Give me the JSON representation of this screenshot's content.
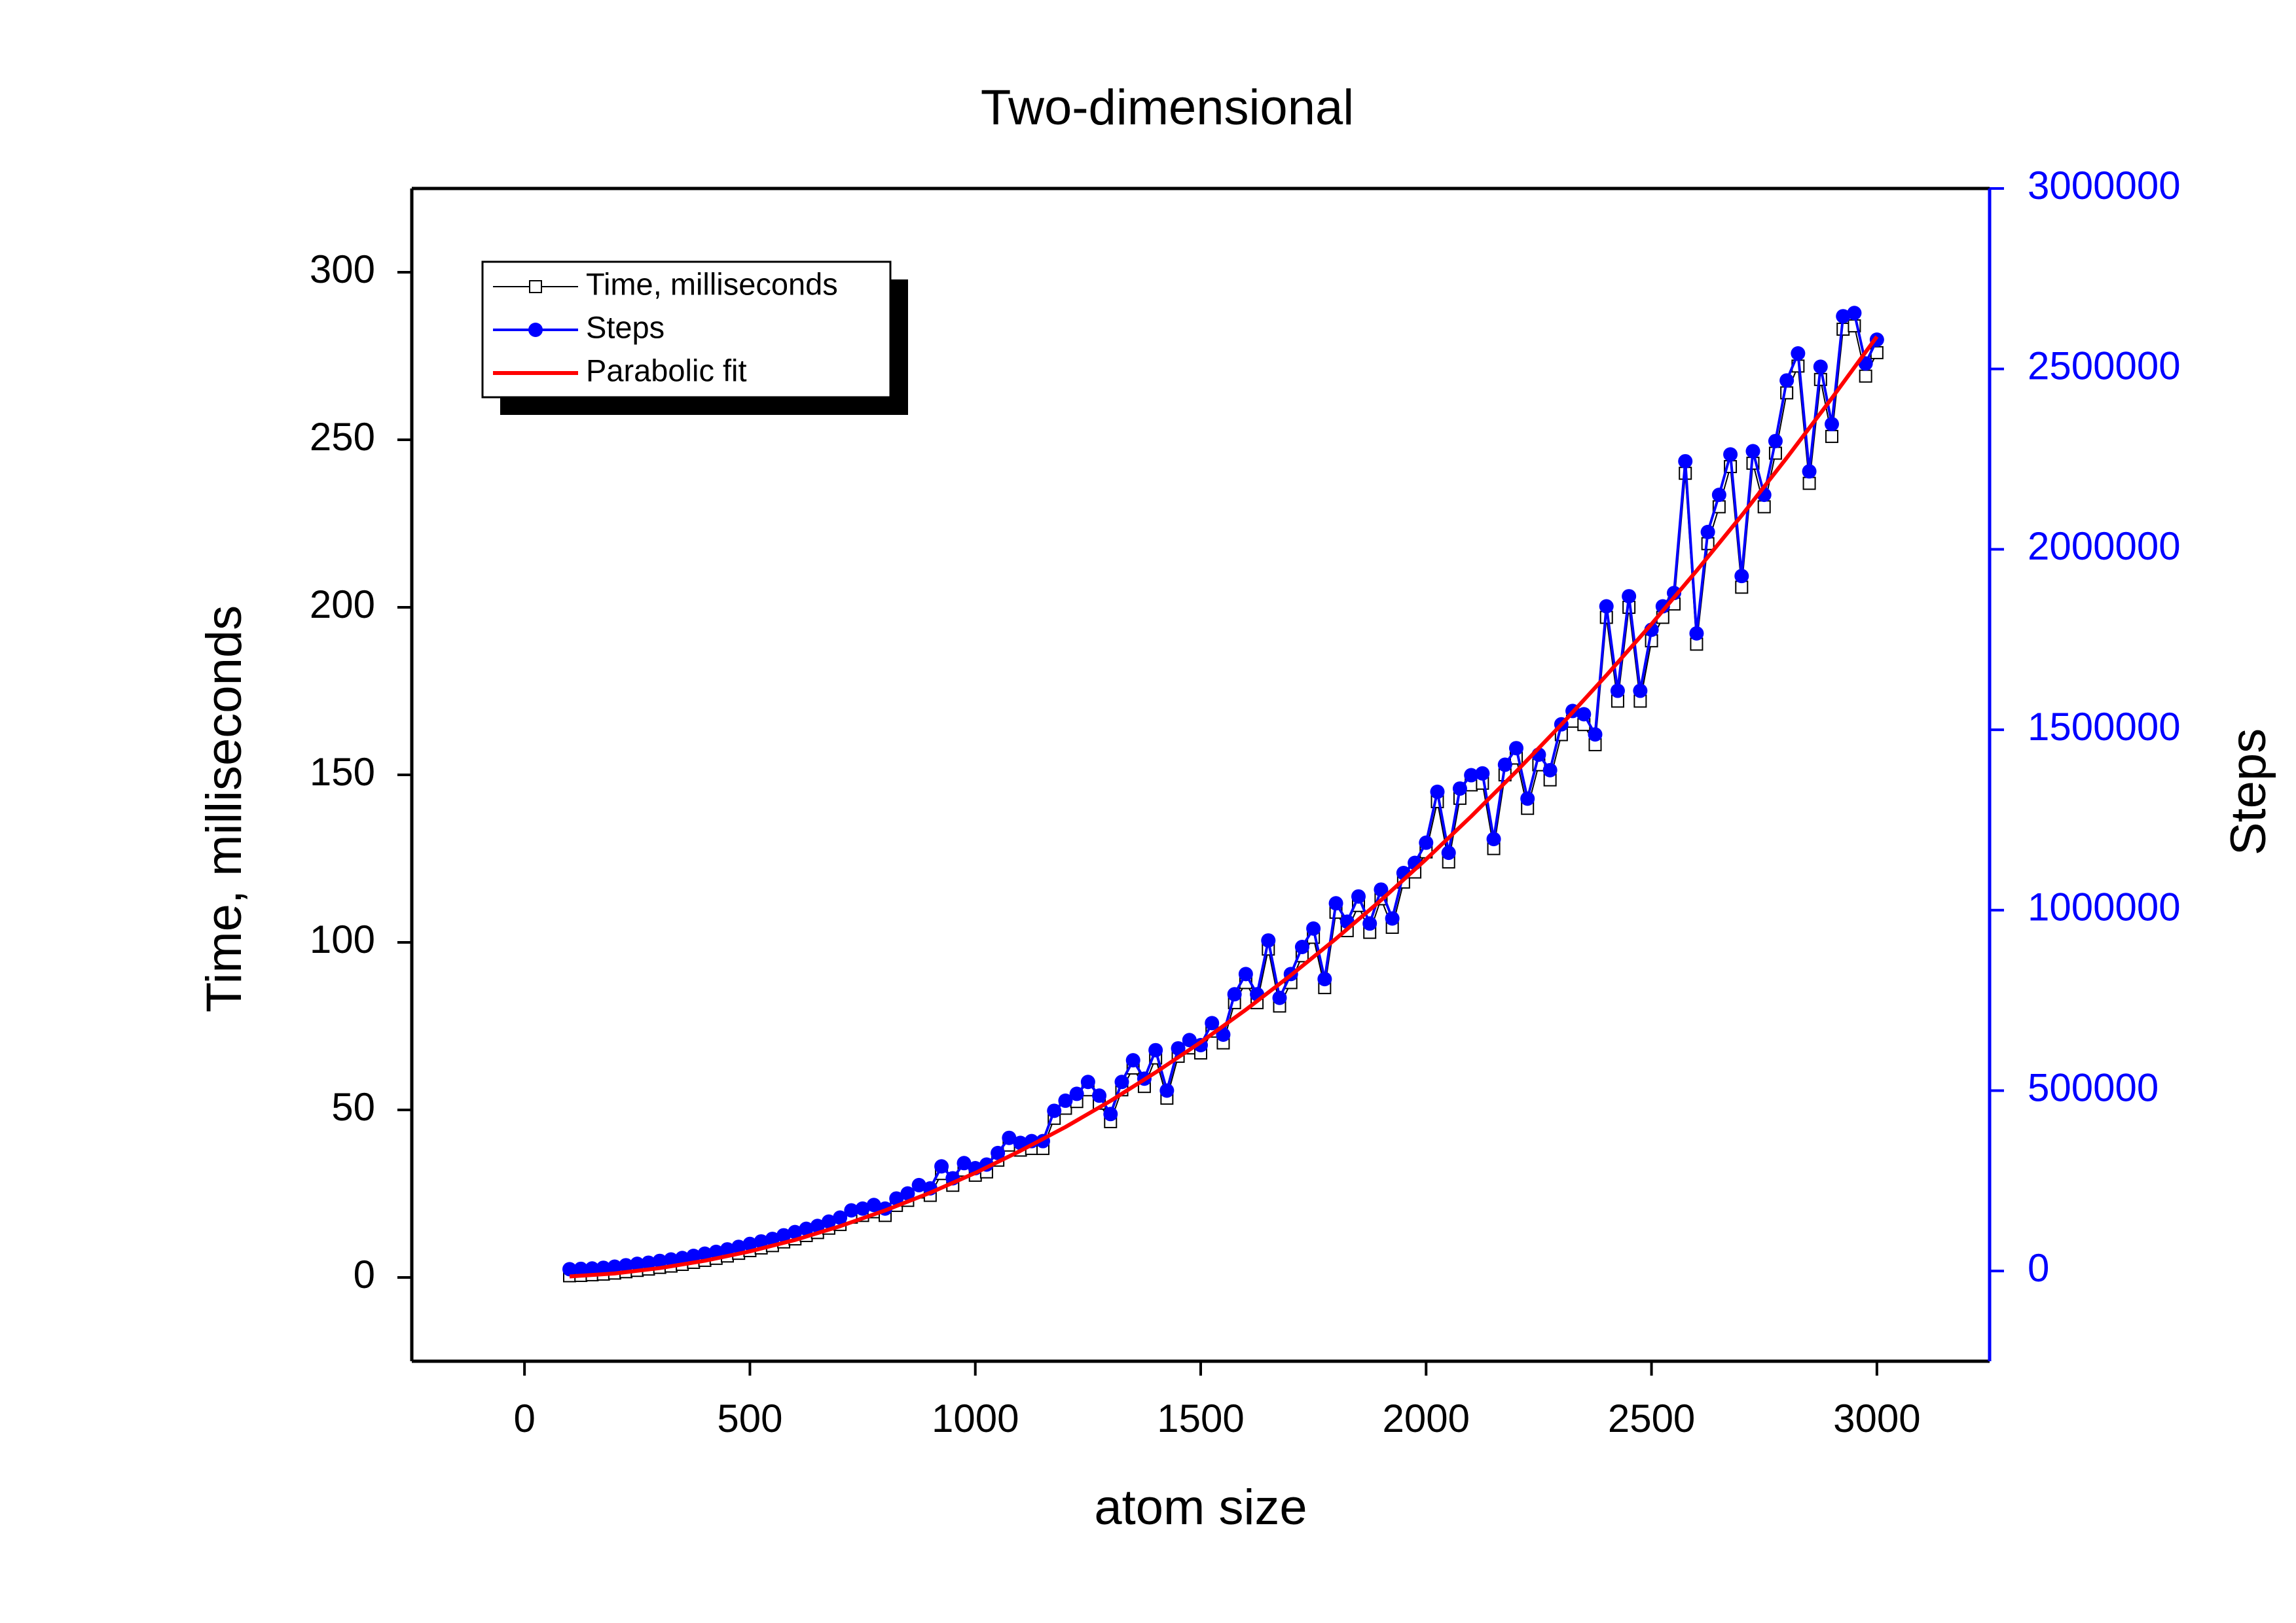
{
  "chart_data": {
    "type": "line",
    "title": "Two-dimensional",
    "x_label": "atom size",
    "y_label": "Time, milliseconds",
    "y2_label": "Steps",
    "y2_color": "#0000ff",
    "xlim": [
      -250,
      3250
    ],
    "xticks": [
      0,
      500,
      1000,
      1500,
      2000,
      2500,
      3000
    ],
    "ylim": [
      -25,
      325
    ],
    "yticks": [
      0,
      50,
      100,
      150,
      200,
      250,
      300
    ],
    "y2lim": [
      -250000,
      3000000
    ],
    "y2ticks": [
      0,
      500000,
      1000000,
      1500000,
      2000000,
      2500000,
      3000000
    ],
    "legend": "upper left",
    "series": [
      {
        "name": "Time, milliseconds",
        "color": "#000000",
        "marker": "square",
        "x": [
          100,
          125,
          150,
          175,
          200,
          225,
          250,
          275,
          300,
          325,
          350,
          375,
          400,
          425,
          450,
          475,
          500,
          525,
          550,
          575,
          600,
          625,
          650,
          675,
          700,
          725,
          750,
          775,
          800,
          825,
          850,
          875,
          900,
          925,
          950,
          975,
          1000,
          1025,
          1050,
          1075,
          1100,
          1125,
          1150,
          1175,
          1200,
          1225,
          1250,
          1275,
          1300,
          1325,
          1350,
          1375,
          1400,
          1425,
          1450,
          1475,
          1500,
          1525,
          1550,
          1575,
          1600,
          1625,
          1650,
          1675,
          1700,
          1725,
          1750,
          1775,
          1800,
          1825,
          1850,
          1875,
          1900,
          1925,
          1950,
          1975,
          2000,
          2025,
          2050,
          2075,
          2100,
          2125,
          2150,
          2175,
          2200,
          2225,
          2250,
          2275,
          2300,
          2325,
          2350,
          2375,
          2400,
          2425,
          2450,
          2475,
          2500,
          2525,
          2550,
          2575,
          2600,
          2625,
          2650,
          2675,
          2700,
          2725,
          2750,
          2775,
          2800,
          2825,
          2850,
          2875,
          2900,
          2925,
          2950,
          2975,
          3000
        ],
        "values": [
          0.5,
          0.6,
          0.8,
          1.0,
          1.3,
          1.7,
          2.1,
          2.5,
          3.0,
          3.4,
          3.9,
          4.5,
          5.1,
          5.7,
          6.4,
          7.2,
          8.0,
          8.8,
          9.5,
          10.6,
          11.5,
          12.5,
          13.4,
          14.7,
          15.8,
          18.0,
          18.5,
          19.6,
          18.5,
          21.5,
          23.0,
          25.5,
          24.5,
          31.0,
          27.5,
          32.0,
          30.5,
          31.5,
          35.0,
          39.5,
          38.0,
          38.5,
          38.5,
          47.5,
          50.5,
          52.5,
          56.0,
          52.0,
          46.5,
          56.0,
          62.5,
          57.0,
          65.5,
          53.5,
          66.0,
          68.5,
          67.0,
          73.5,
          70.0,
          82.0,
          88.0,
          82.0,
          98.0,
          81.0,
          88.0,
          96.0,
          101.5,
          86.5,
          109.0,
          103.5,
          111.0,
          103.0,
          113.0,
          104.5,
          118.0,
          121.0,
          127.0,
          142.0,
          124.0,
          143.0,
          147.0,
          147.5,
          128.0,
          150.0,
          155.0,
          140.0,
          153.0,
          148.5,
          162.0,
          166.0,
          165.0,
          159.0,
          197.0,
          172.0,
          200.0,
          172.0,
          190.0,
          197.0,
          201.0,
          240.0,
          189.0,
          219.0,
          230.0,
          242.0,
          206.0,
          243.0,
          230.0,
          246.0,
          264.0,
          272.0,
          237.0,
          268.0,
          251.0,
          283.0,
          284.0,
          269.0,
          276.0
        ]
      },
      {
        "name": "Steps",
        "color": "#0000ff",
        "marker": "circle",
        "axis": "y2",
        "x": [
          100,
          125,
          150,
          175,
          200,
          225,
          250,
          275,
          300,
          325,
          350,
          375,
          400,
          425,
          450,
          475,
          500,
          525,
          550,
          575,
          600,
          625,
          650,
          675,
          700,
          725,
          750,
          775,
          800,
          825,
          850,
          875,
          900,
          925,
          950,
          975,
          1000,
          1025,
          1050,
          1075,
          1100,
          1125,
          1150,
          1175,
          1200,
          1225,
          1250,
          1275,
          1300,
          1325,
          1350,
          1375,
          1400,
          1425,
          1450,
          1475,
          1500,
          1525,
          1550,
          1575,
          1600,
          1625,
          1650,
          1675,
          1700,
          1725,
          1750,
          1775,
          1800,
          1825,
          1850,
          1875,
          1900,
          1925,
          1950,
          1975,
          2000,
          2025,
          2050,
          2075,
          2100,
          2125,
          2150,
          2175,
          2200,
          2225,
          2250,
          2275,
          2300,
          2325,
          2350,
          2375,
          2400,
          2425,
          2450,
          2475,
          2500,
          2525,
          2550,
          2575,
          2600,
          2625,
          2650,
          2675,
          2700,
          2725,
          2750,
          2775,
          2800,
          2825,
          2850,
          2875,
          2900,
          2925,
          2950,
          2975,
          3000
        ],
        "values": [
          5000,
          6000,
          7000,
          9000,
          12000,
          16000,
          20000,
          23000,
          28000,
          32000,
          36000,
          42000,
          48000,
          53000,
          60000,
          67000,
          75000,
          82000,
          89000,
          99000,
          108000,
          117000,
          125000,
          137000,
          148000,
          168000,
          173000,
          183000,
          173000,
          201000,
          215000,
          238000,
          229000,
          290000,
          257000,
          299000,
          285000,
          295000,
          327000,
          369000,
          355000,
          360000,
          360000,
          444000,
          472000,
          491000,
          524000,
          486000,
          435000,
          524000,
          584000,
          533000,
          612000,
          500000,
          617000,
          640000,
          626000,
          687000,
          655000,
          767000,
          823000,
          767000,
          916000,
          757000,
          823000,
          898000,
          949000,
          809000,
          1019000,
          968000,
          1038000,
          963000,
          1057000,
          977000,
          1103000,
          1131000,
          1187000,
          1328000,
          1159000,
          1337000,
          1374000,
          1379000,
          1197000,
          1403000,
          1449000,
          1309000,
          1431000,
          1388000,
          1515000,
          1552000,
          1543000,
          1487000,
          1842000,
          1608000,
          1870000,
          1608000,
          1777000,
          1842000,
          1879000,
          2244000,
          1767000,
          2048000,
          2151000,
          2263000,
          1926000,
          2272000,
          2151000,
          2300000,
          2468000,
          2543000,
          2216000,
          2506000,
          2347000,
          2646000,
          2655000,
          2515000,
          2581000
        ]
      },
      {
        "name": "Parabolic fit",
        "color": "#ff0000",
        "marker": "none",
        "x": [
          100,
          200,
          300,
          400,
          500,
          600,
          700,
          800,
          900,
          1000,
          1100,
          1200,
          1300,
          1400,
          1500,
          1600,
          1700,
          1800,
          1900,
          2000,
          2100,
          2200,
          2300,
          2400,
          2500,
          2600,
          2700,
          2800,
          2900,
          3000
        ],
        "values": [
          0.3,
          1.2,
          2.8,
          5.0,
          7.8,
          11.2,
          15.3,
          20.0,
          25.3,
          31.2,
          37.8,
          44.9,
          52.7,
          61.2,
          70.2,
          79.9,
          90.2,
          101.1,
          112.6,
          124.8,
          137.6,
          151.0,
          165.0,
          179.7,
          195.0,
          210.9,
          227.4,
          244.6,
          262.4,
          280.8
        ]
      }
    ]
  }
}
